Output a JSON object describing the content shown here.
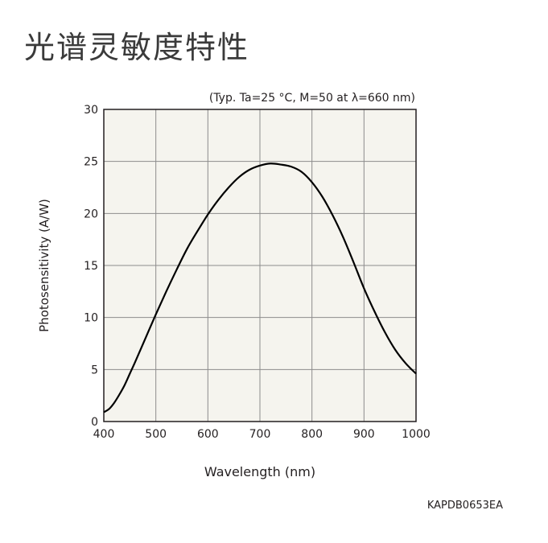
{
  "title": "光谱灵敏度特性",
  "footer_code": "KAPDB0653EA",
  "chart_data": {
    "type": "line",
    "annotation": "(Typ. Ta=25 °C, M=50 at λ=660 nm)",
    "xlabel": "Wavelength (nm)",
    "ylabel": "Photosensitivity (A/W)",
    "xlim": [
      400,
      1000
    ],
    "ylim": [
      0,
      30
    ],
    "xticks": [
      400,
      500,
      600,
      700,
      800,
      900,
      1000
    ],
    "yticks": [
      0,
      5,
      10,
      15,
      20,
      25,
      30
    ],
    "grid": true,
    "plot_background": "#f5f4ee",
    "line_color": "#000000",
    "series": [
      {
        "x": [
          400,
          410,
          420,
          430,
          440,
          450,
          460,
          480,
          500,
          520,
          540,
          560,
          580,
          600,
          620,
          640,
          660,
          680,
          700,
          720,
          740,
          760,
          780,
          800,
          820,
          840,
          860,
          880,
          900,
          920,
          940,
          960,
          980,
          1000
        ],
        "y": [
          0.9,
          1.2,
          1.8,
          2.6,
          3.5,
          4.6,
          5.7,
          8.0,
          10.3,
          12.5,
          14.6,
          16.6,
          18.3,
          19.9,
          21.3,
          22.5,
          23.5,
          24.2,
          24.6,
          24.8,
          24.7,
          24.5,
          24.0,
          23.0,
          21.6,
          19.8,
          17.7,
          15.3,
          12.8,
          10.6,
          8.6,
          6.9,
          5.6,
          4.6
        ]
      }
    ]
  }
}
